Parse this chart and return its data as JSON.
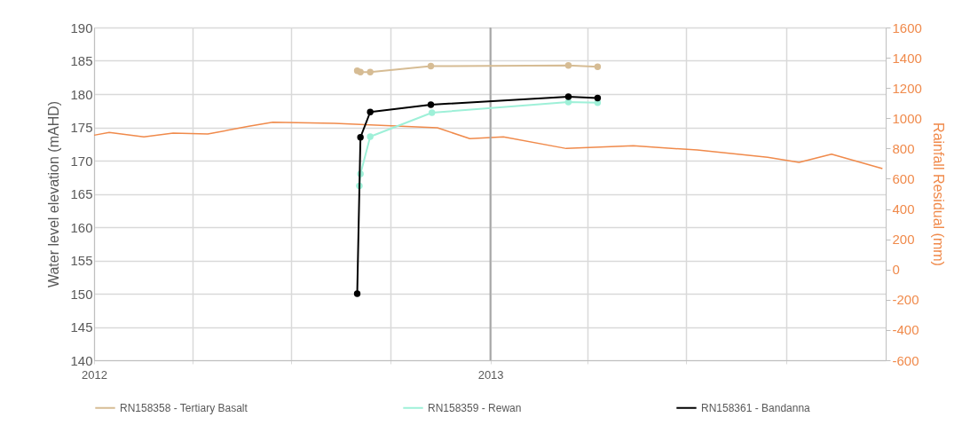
{
  "chart_data": {
    "type": "line",
    "ylabel": "Water level elevation (mAHD)",
    "y2label": "Rainfall Residual (mm)",
    "xlim": [
      "2012-01-01",
      "2014-01-01"
    ],
    "xticks": [
      {
        "value": "2012-01-01",
        "label": "2012"
      },
      {
        "value": "2012-04-01",
        "label": null
      },
      {
        "value": "2012-07-01",
        "label": null
      },
      {
        "value": "2012-10-01",
        "label": null
      },
      {
        "value": "2013-01-01",
        "label": "2013"
      },
      {
        "value": "2013-04-01",
        "label": null
      },
      {
        "value": "2013-07-01",
        "label": null
      },
      {
        "value": "2013-10-01",
        "label": null
      }
    ],
    "ylim": [
      140,
      190
    ],
    "yticks": [
      140,
      145,
      150,
      155,
      160,
      165,
      170,
      175,
      180,
      185,
      190
    ],
    "y2lim": [
      -600,
      1600
    ],
    "y2ticks": [
      -600,
      -400,
      -200,
      0,
      200,
      400,
      600,
      800,
      1000,
      1200,
      1400,
      1600
    ],
    "grid": true,
    "legend": "bottom",
    "ref_lines": [
      {
        "axis": "x",
        "value": "2013-01-01",
        "color": "#a6a6a6"
      }
    ],
    "series": [
      {
        "type": "line",
        "axis": "y2",
        "color": "#f08a4b",
        "marker": "none",
        "x": [
          "2012-01-01",
          "2012-01-15",
          "2012-02-16",
          "2012-03-14",
          "2012-04-15",
          "2012-05-23",
          "2012-06-14",
          "2012-08-10",
          "2012-11-13",
          "2012-12-13",
          "2013-01-13",
          "2013-03-12",
          "2013-05-13",
          "2013-07-11",
          "2013-09-14",
          "2013-10-13",
          "2013-11-12",
          "2013-12-29"
        ],
        "values": [
          888,
          906,
          877,
          902,
          896,
          947,
          974,
          966,
          937,
          865,
          877,
          800,
          818,
          790,
          742,
          708,
          763,
          667
        ]
      },
      {
        "name": "RN158358 - Tertiary Basalt",
        "type": "line",
        "color": "#d6bc94",
        "marker": "circle",
        "x": [
          "2012-08-31",
          "2012-09-03",
          "2012-09-12",
          "2012-11-07",
          "2013-03-14",
          "2013-04-10"
        ],
        "values": [
          183.5,
          183.3,
          183.3,
          184.2,
          184.3,
          184.1
        ]
      },
      {
        "name": "RN158359 - Rewan",
        "type": "line",
        "color": "#9ef0d8",
        "marker": "circle",
        "x": [
          "2012-09-02",
          "2012-09-03",
          "2012-09-12",
          "2012-11-08",
          "2013-03-14",
          "2013-04-10"
        ],
        "values": [
          166.2,
          168.0,
          173.6,
          177.2,
          178.8,
          178.7
        ]
      },
      {
        "name": "RN158361 - Bandanna",
        "type": "line",
        "color": "#000000",
        "marker": "circle",
        "x": [
          "2012-08-31",
          "2012-09-03",
          "2012-09-12",
          "2012-11-07",
          "2013-03-14",
          "2013-04-10"
        ],
        "values": [
          150.0,
          173.5,
          177.3,
          178.4,
          179.6,
          179.4
        ]
      }
    ]
  }
}
